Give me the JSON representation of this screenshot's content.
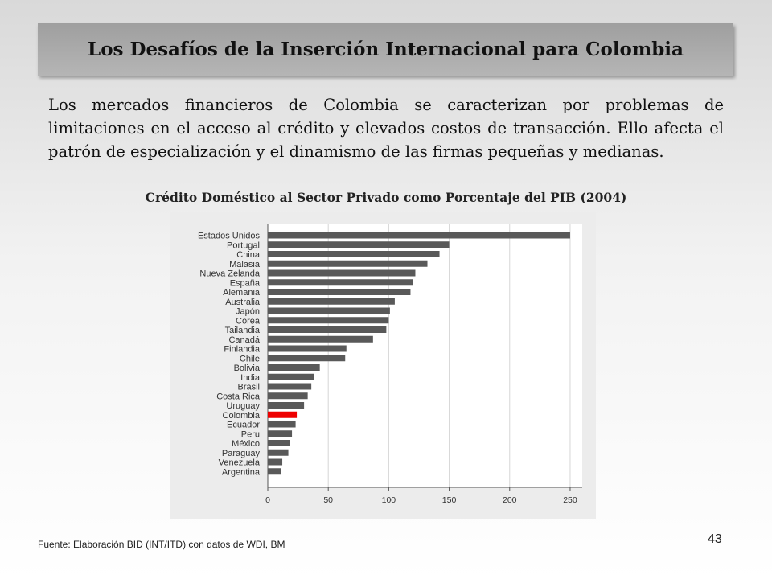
{
  "slide": {
    "title": "Los Desafíos de la Inserción Internacional para Colombia",
    "body": "Los mercados financieros de Colombia se caracterizan por problemas de limitaciones en el acceso al crédito y elevados costos de transacción. Ello afecta el patrón de especialización y el dinamismo de las firmas pequeñas y medianas.",
    "source": "Fuente: Elaboración BID (INT/ITD)  con datos  de WDI, BM",
    "page_number": "43"
  },
  "chart_data": {
    "type": "bar",
    "orientation": "horizontal",
    "title": "Crédito Doméstico al Sector Privado como Porcentaje del PIB (2004)",
    "xlabel": "",
    "ylabel": "",
    "xlim": [
      0,
      260
    ],
    "x_ticks": [
      0,
      50,
      100,
      150,
      200,
      250
    ],
    "grid": true,
    "bar_color": "#595959",
    "highlight_color": "#ee0000",
    "highlight_category": "Colombia",
    "categories": [
      "Estados Unidos",
      "Portugal",
      "China",
      "Malasia",
      "Nueva Zelanda",
      "España",
      "Alemania",
      "Australia",
      "Japón",
      "Corea",
      "Tailandia",
      "Canadá",
      "Finlandia",
      "Chile",
      "Bolivia",
      "India",
      "Brasil",
      "Costa Rica",
      "Uruguay",
      "Colombia",
      "Ecuador",
      "Peru",
      "México",
      "Paraguay",
      "Venezuela",
      "Argentina"
    ],
    "values": [
      250,
      150,
      142,
      132,
      122,
      120,
      118,
      105,
      101,
      100,
      98,
      87,
      65,
      64,
      43,
      38,
      36,
      33,
      30,
      24,
      23,
      20,
      18,
      17,
      12,
      11
    ]
  }
}
